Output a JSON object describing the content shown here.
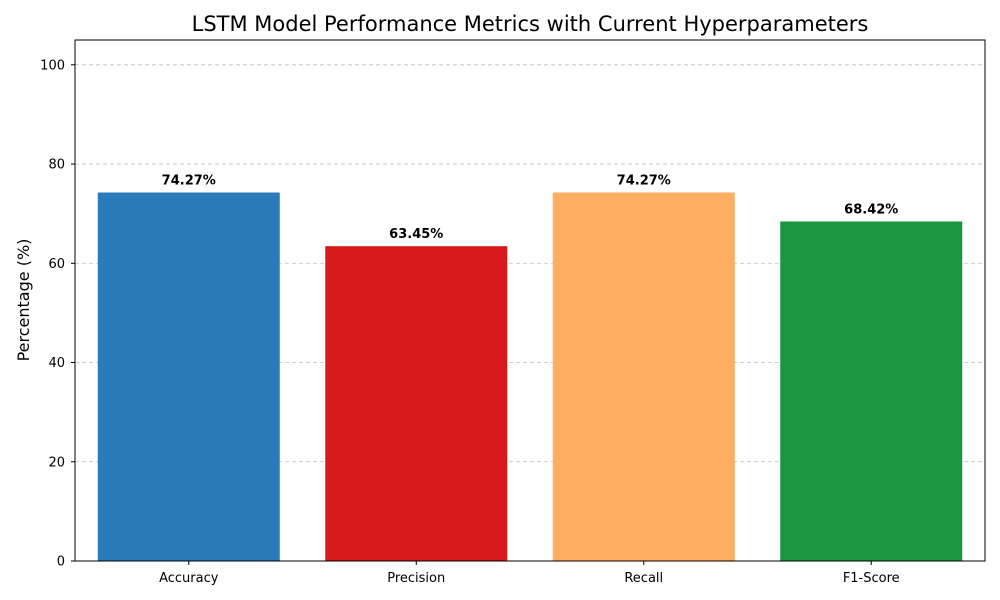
{
  "chart_data": {
    "type": "bar",
    "title": "LSTM Model Performance Metrics with Current Hyperparameters",
    "xlabel": "",
    "ylabel": "Percentage (%)",
    "categories": [
      "Accuracy",
      "Precision",
      "Recall",
      "F1-Score"
    ],
    "values": [
      74.27,
      63.45,
      74.27,
      68.42
    ],
    "value_labels": [
      "74.27%",
      "63.45%",
      "74.27%",
      "68.42%"
    ],
    "colors": [
      "#2b7bb9",
      "#d7191c",
      "#fdae61",
      "#1a9641"
    ],
    "ylim": [
      0,
      105
    ],
    "yticks": [
      0,
      20,
      40,
      60,
      80,
      100
    ],
    "ytick_labels": [
      "0",
      "20",
      "40",
      "60",
      "80",
      "100"
    ],
    "grid": "y-dashed",
    "legend": "none"
  }
}
